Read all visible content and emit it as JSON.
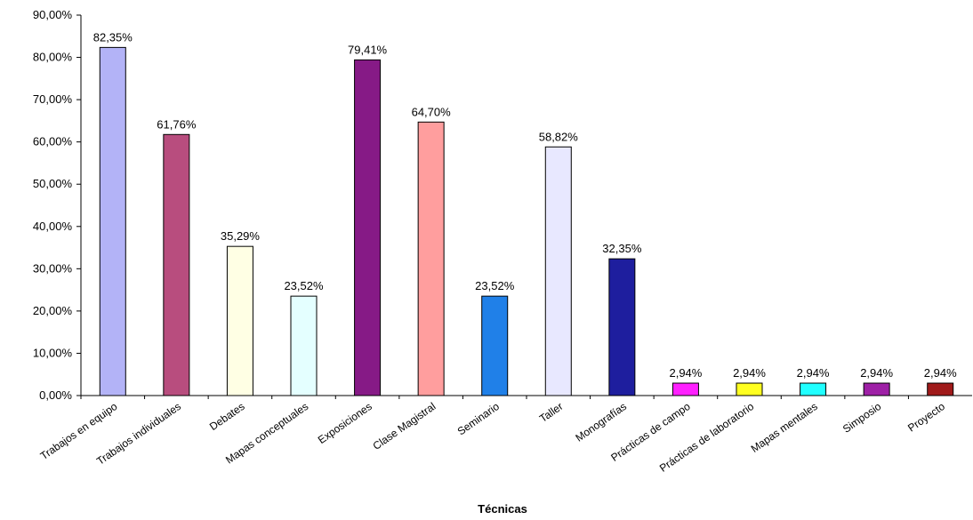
{
  "chart_data": {
    "type": "bar",
    "x_label": "Técnicas",
    "categories": [
      "Trabajos en equipo",
      "Trabajos individuales",
      "Debates",
      "Mapas conceptuales",
      "Exposiciones",
      "Clase Magistral",
      "Seminario",
      "Taller",
      "Monografías",
      "Prácticas de campo",
      "Prácticas de laboratorio",
      "Mapas mentales",
      "Simposio",
      "Proyecto"
    ],
    "values": [
      82.35,
      61.76,
      35.29,
      23.52,
      79.41,
      64.7,
      23.52,
      58.82,
      32.35,
      2.94,
      2.94,
      2.94,
      2.94,
      2.94
    ],
    "value_labels": [
      "82,35%",
      "61,76%",
      "35,29%",
      "23,52%",
      "79,41%",
      "64,70%",
      "23,52%",
      "58,82%",
      "32,35%",
      "2,94%",
      "2,94%",
      "2,94%",
      "2,94%",
      "2,94%"
    ],
    "colors": [
      "#b3b3f7",
      "#b84d7e",
      "#ffffe4",
      "#e4ffff",
      "#861a86",
      "#ff9e9e",
      "#2080e8",
      "#e8e8ff",
      "#1e1e9e",
      "#ff20ff",
      "#ffff20",
      "#20ffff",
      "#9e20a6",
      "#a01a1a"
    ],
    "ylim": [
      0,
      90
    ],
    "yticks": [
      {
        "value": 0,
        "label": "0,00%"
      },
      {
        "value": 10,
        "label": "10,00%"
      },
      {
        "value": 20,
        "label": "20,00%"
      },
      {
        "value": 30,
        "label": "30,00%"
      },
      {
        "value": 40,
        "label": "40,00%"
      },
      {
        "value": 50,
        "label": "50,00%"
      },
      {
        "value": 60,
        "label": "60,00%"
      },
      {
        "value": 70,
        "label": "70,00%"
      },
      {
        "value": 80,
        "label": "80,00%"
      },
      {
        "value": 90,
        "label": "90,00%"
      }
    ],
    "grid": false
  }
}
